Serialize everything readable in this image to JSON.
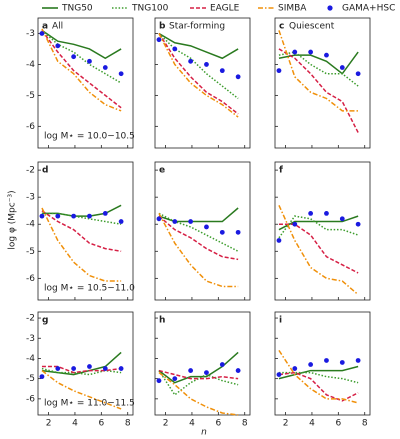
{
  "chart_data": {
    "type": "line",
    "xlabel": "n",
    "ylabel": "log φ (Mpc⁻³)",
    "x": [
      1.5,
      2.7,
      3.9,
      5.1,
      6.3,
      7.5
    ],
    "xlim": [
      1.2,
      8.4
    ],
    "xticks": [
      2,
      4,
      6,
      8
    ],
    "series": [
      {
        "name": "TNG50",
        "color": "#2a7a1f",
        "style": "solid"
      },
      {
        "name": "TNG100",
        "color": "#3c9c2c",
        "style": "dotted"
      },
      {
        "name": "EAGLE",
        "color": "#d62045",
        "style": "dashed"
      },
      {
        "name": "SIMBA",
        "color": "#f0900a",
        "style": "dashdot"
      },
      {
        "name": "GAMA+HSC",
        "color": "#1a1ae0",
        "style": "points"
      }
    ],
    "rows": [
      {
        "ylim": [
          -6.7,
          -2.5
        ],
        "yticks": [
          -6,
          -5,
          -4,
          -3
        ],
        "panels": [
          {
            "label": "a",
            "title": "All",
            "annotation": "log M⋆ = 10.0−10.5",
            "values": [
              [
                -2.9,
                -3.25,
                -3.35,
                -3.5,
                -3.8,
                -3.5
              ],
              [
                -2.9,
                -3.35,
                -3.6,
                -4.0,
                -4.3,
                -4.6
              ],
              [
                -2.9,
                -3.6,
                -4.2,
                -4.6,
                -5.0,
                -5.4
              ],
              [
                -2.85,
                -3.9,
                -4.3,
                -4.9,
                -5.3,
                -5.5
              ],
              [
                -3.0,
                -3.4,
                -3.75,
                -3.9,
                -4.1,
                -4.3
              ]
            ]
          },
          {
            "label": "b",
            "title": "Star-forming",
            "values": [
              [
                -3.0,
                -3.3,
                -3.4,
                -3.6,
                -3.8,
                -3.5
              ],
              [
                -3.0,
                -3.5,
                -3.8,
                -4.3,
                -4.7,
                -5.1
              ],
              [
                -3.0,
                -3.8,
                -4.4,
                -4.9,
                -5.2,
                -5.6
              ],
              [
                -3.0,
                -4.0,
                -4.6,
                -5.0,
                -5.3,
                -5.7
              ],
              [
                -3.2,
                -3.5,
                -3.9,
                -4.0,
                -4.2,
                -4.4
              ]
            ]
          },
          {
            "label": "c",
            "title": "Quiescent",
            "values": [
              [
                -3.8,
                -3.7,
                -3.7,
                -3.9,
                -4.3,
                -3.6
              ],
              [
                -3.7,
                -3.6,
                -4.0,
                -4.3,
                -4.3,
                -4.7
              ],
              [
                -3.5,
                -3.8,
                -4.3,
                -4.9,
                -5.2,
                -6.2
              ],
              [
                -2.9,
                -4.4,
                -4.9,
                -5.1,
                -5.5,
                -5.5
              ],
              [
                -4.2,
                -3.6,
                -3.6,
                -3.7,
                -4.1,
                -4.3
              ]
            ]
          }
        ]
      },
      {
        "ylim": [
          -6.8,
          -1.7
        ],
        "yticks": [
          -6,
          -5,
          -4,
          -3,
          -2
        ],
        "panels": [
          {
            "label": "d",
            "annotation": "log M⋆ = 10.5−11.0",
            "values": [
              [
                -3.6,
                -3.6,
                -3.7,
                -3.7,
                -3.6,
                -3.3
              ],
              [
                -3.6,
                -3.6,
                -3.7,
                -3.8,
                -3.9,
                -4.0
              ],
              [
                -3.5,
                -3.9,
                -4.2,
                -4.7,
                -4.9,
                -5.0
              ],
              [
                -3.4,
                -4.6,
                -5.4,
                -5.9,
                -6.1,
                -6.1
              ],
              [
                -3.7,
                -3.7,
                -3.7,
                -3.7,
                -3.6,
                -3.9
              ]
            ]
          },
          {
            "label": "e",
            "values": [
              [
                -3.7,
                -3.9,
                -3.9,
                -3.9,
                -3.9,
                -3.4
              ],
              [
                -3.6,
                -3.9,
                -4.1,
                -4.4,
                -4.7,
                -5.0
              ],
              [
                -3.7,
                -4.2,
                -4.5,
                -4.9,
                -5.2,
                -5.3
              ],
              [
                -3.6,
                -4.7,
                -5.5,
                -6.1,
                -6.3,
                -6.3
              ],
              [
                -3.8,
                -3.9,
                -3.9,
                -4.1,
                -4.3,
                -4.3
              ]
            ]
          },
          {
            "label": "f",
            "values": [
              [
                -4.2,
                -3.9,
                -3.9,
                -3.9,
                -3.9,
                -3.7
              ],
              [
                -4.5,
                -3.7,
                -3.8,
                -4.2,
                -4.2,
                -4.4
              ],
              [
                -4.0,
                -4.0,
                -4.4,
                -5.2,
                -5.5,
                -5.8
              ],
              [
                -3.3,
                -4.6,
                -5.6,
                -6.0,
                -6.1,
                -6.6
              ],
              [
                -4.6,
                -4.0,
                -3.6,
                -3.6,
                -3.8,
                -4.0
              ]
            ]
          }
        ]
      },
      {
        "ylim": [
          -6.8,
          -1.7
        ],
        "yticks": [
          -6,
          -5,
          -4,
          -3,
          -2
        ],
        "panels": [
          {
            "label": "g",
            "annotation": "log M⋆ = 11.0−11.5",
            "values": [
              [
                -4.6,
                -4.7,
                -4.8,
                -4.6,
                -4.4,
                -3.7
              ],
              [
                -4.5,
                -4.7,
                -4.7,
                -4.8,
                -4.6,
                -4.7
              ],
              [
                -4.4,
                -4.4,
                -4.7,
                -4.6,
                -4.6,
                -4.5
              ],
              [
                -4.6,
                -5.2,
                -5.6,
                -5.9,
                -6.2,
                -6.5
              ],
              [
                -4.9,
                -4.5,
                -4.5,
                -4.4,
                -4.5,
                -4.5
              ]
            ]
          },
          {
            "label": "h",
            "values": [
              [
                -4.6,
                -5.2,
                -4.9,
                -4.9,
                -4.4,
                -3.7
              ],
              [
                -4.6,
                -5.8,
                -5.2,
                -4.8,
                -5.1,
                -5.3
              ],
              [
                -4.6,
                -4.8,
                -5.0,
                -5.0,
                -4.9,
                -5.0
              ],
              [
                -4.7,
                -5.3,
                -6.0,
                -6.4,
                -6.7,
                -6.8
              ],
              [
                -5.1,
                -5.0,
                -4.6,
                -4.7,
                -4.3,
                -4.6
              ]
            ]
          },
          {
            "label": "i",
            "values": [
              [
                -5.0,
                -4.8,
                -4.6,
                -4.6,
                -4.6,
                -4.4
              ],
              [
                -4.7,
                -4.7,
                -4.7,
                -4.9,
                -5.0,
                -5.2
              ],
              [
                -4.8,
                -4.7,
                -5.0,
                -5.8,
                -6.1,
                -5.7
              ],
              [
                -3.6,
                -4.8,
                -5.5,
                -6.0,
                -6.0,
                -6.2
              ],
              [
                -4.8,
                -4.5,
                -4.3,
                -4.1,
                -4.2,
                -4.1
              ]
            ]
          }
        ]
      }
    ]
  }
}
